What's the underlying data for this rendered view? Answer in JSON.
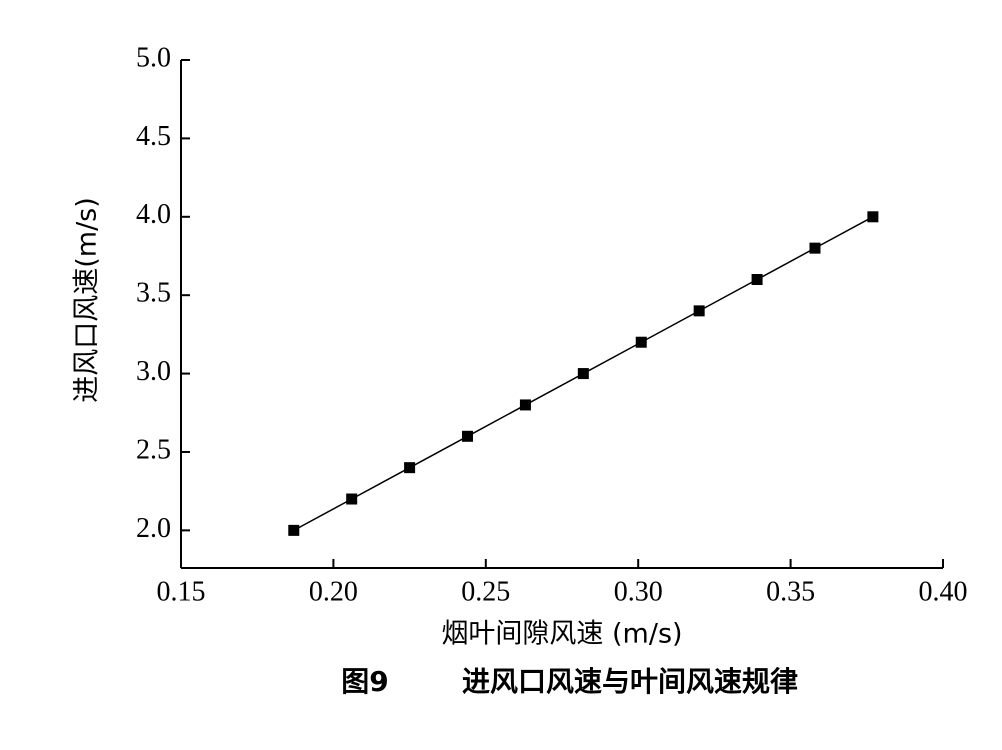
{
  "chart_data": {
    "type": "line",
    "figure_label": "图9",
    "title": "进风口风速与叶间风速规律",
    "x_label": "烟叶间隙风速 (m/s)",
    "y_label": "进风口风速(m/s)",
    "x": [
      0.187,
      0.206,
      0.225,
      0.244,
      0.263,
      0.282,
      0.301,
      0.32,
      0.339,
      0.358,
      0.377
    ],
    "series": [
      {
        "color": "#000000",
        "values": [
          2.0,
          2.2,
          2.4,
          2.6,
          2.8,
          3.0,
          3.2,
          3.4,
          3.6,
          3.8,
          4.0
        ]
      }
    ],
    "xlim": [
      0.15,
      0.4
    ],
    "xticks": [
      0.15,
      {
        "value": 0.2,
        "label": "0.20"
      },
      0.25,
      {
        "value": 0.3,
        "label": "0.30"
      },
      0.35,
      {
        "value": 0.4,
        "label": "0.40"
      }
    ],
    "ylim": [
      1.76,
      5.0
    ],
    "yticks": [
      {
        "value": 2,
        "label": "2.0"
      },
      {
        "value": 2.5,
        "label": "2.5"
      },
      {
        "value": 3,
        "label": "3.0"
      },
      {
        "value": 3.5,
        "label": "3.5"
      },
      {
        "value": 4,
        "label": "4.0"
      },
      {
        "value": 4.5,
        "label": "4.5"
      },
      {
        "value": 5,
        "label": "5.0"
      }
    ],
    "grid": false
  }
}
